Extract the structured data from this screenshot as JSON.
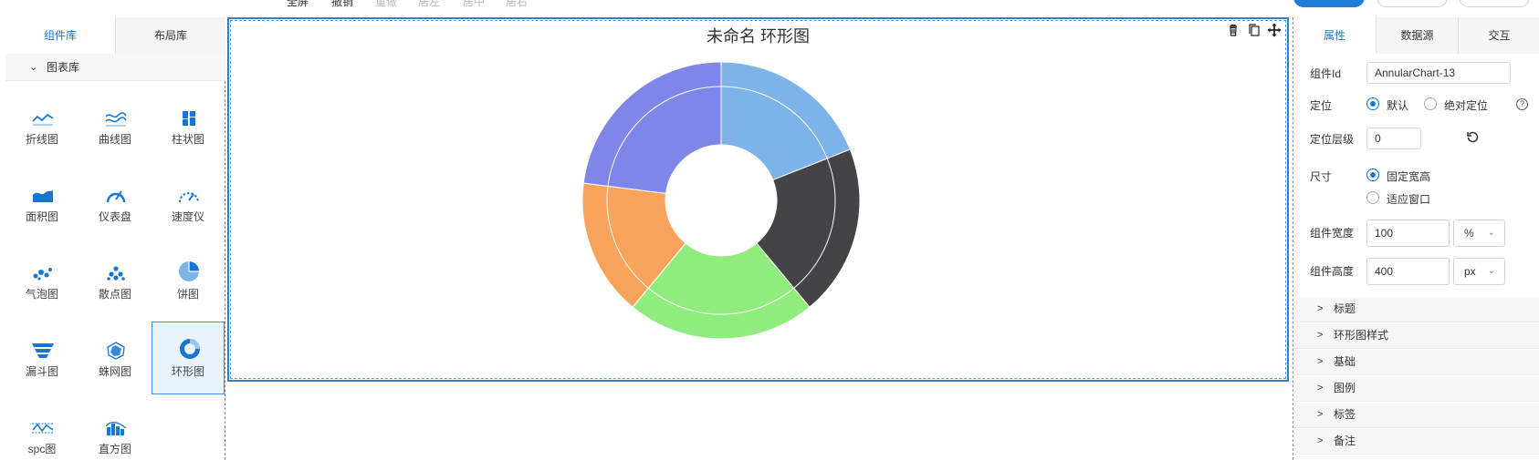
{
  "toolbar": {
    "items": [
      {
        "label": "全屏",
        "disabled": false
      },
      {
        "label": "撤销",
        "disabled": false
      },
      {
        "label": "重做",
        "disabled": true
      },
      {
        "label": "居左",
        "disabled": true
      },
      {
        "label": "居中",
        "disabled": true
      },
      {
        "label": "居右",
        "disabled": true
      }
    ]
  },
  "left_panel": {
    "tabs": [
      "组件库",
      "布局库"
    ],
    "active_tab": 0,
    "section_title": "图表库",
    "components": [
      {
        "label": "折线图",
        "icon": "line-chart-icon"
      },
      {
        "label": "曲线图",
        "icon": "curve-chart-icon"
      },
      {
        "label": "柱状图",
        "icon": "bar-chart-icon"
      },
      {
        "label": "面积图",
        "icon": "area-chart-icon"
      },
      {
        "label": "仪表盘",
        "icon": "gauge-icon"
      },
      {
        "label": "速度仪",
        "icon": "speedometer-icon"
      },
      {
        "label": "气泡图",
        "icon": "bubble-chart-icon"
      },
      {
        "label": "散点图",
        "icon": "scatter-chart-icon"
      },
      {
        "label": "饼图",
        "icon": "pie-chart-icon"
      },
      {
        "label": "漏斗图",
        "icon": "funnel-chart-icon"
      },
      {
        "label": "蛛网图",
        "icon": "radar-chart-icon"
      },
      {
        "label": "环形图",
        "icon": "donut-chart-icon"
      },
      {
        "label": "spc图",
        "icon": "spc-chart-icon"
      },
      {
        "label": "直方图",
        "icon": "histogram-icon"
      }
    ],
    "selected_component": 11
  },
  "canvas": {
    "chart_title": "未命名 环形图",
    "tools": [
      "delete-icon",
      "copy-icon",
      "move-icon"
    ]
  },
  "chart_data": {
    "type": "pie",
    "subtype": "donut",
    "title": "未命名 环形图",
    "series": [
      {
        "name": "",
        "values": [
          19,
          20,
          22,
          16,
          23
        ]
      }
    ],
    "colors": [
      "#7eb3ea",
      "#434348",
      "#90ed7d",
      "#f7a35c",
      "#8085e9"
    ],
    "legend": "none"
  },
  "right_panel": {
    "tabs": [
      "属性",
      "数据源",
      "交互"
    ],
    "active_tab": 0,
    "component_id_label": "组件Id",
    "component_id_value": "AnnularChart-13",
    "position_label": "定位",
    "position_options": [
      "默认",
      "绝对定位"
    ],
    "position_selected": 0,
    "z_label": "定位层级",
    "z_value": "0",
    "size_label": "尺寸",
    "size_options": [
      "固定宽高",
      "适应窗口"
    ],
    "size_selected": 0,
    "width_label": "组件宽度",
    "width_value": "100",
    "width_unit": "%",
    "height_label": "组件高度",
    "height_value": "400",
    "height_unit": "px",
    "sections": [
      "标题",
      "环形图样式",
      "基础",
      "图例",
      "标签",
      "备注"
    ]
  }
}
